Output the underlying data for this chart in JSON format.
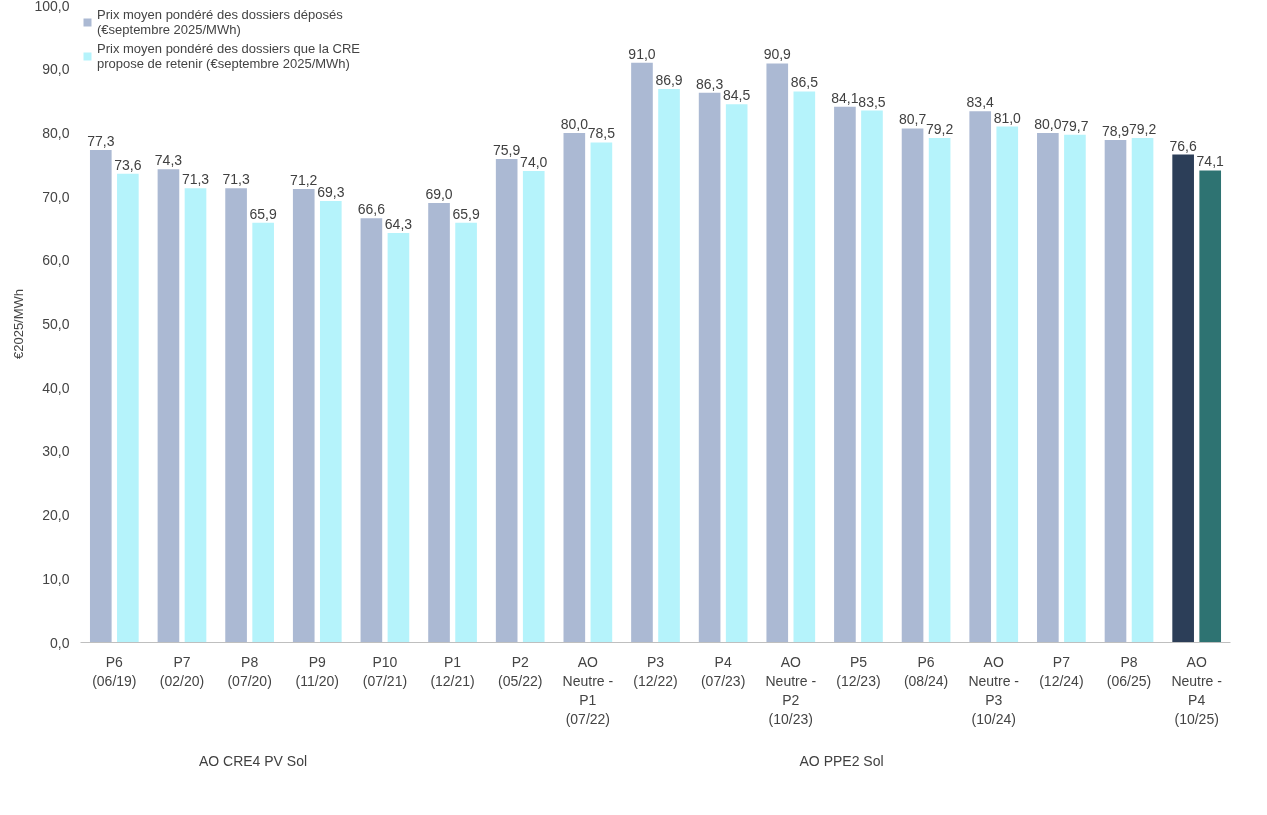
{
  "chart_data": {
    "type": "bar",
    "ylabel": "€2025/MWh",
    "categories": [
      "P6\n(06/19)",
      "P7\n(02/20)",
      "P8\n(07/20)",
      "P9\n(11/20)",
      "P10\n(07/21)",
      "P1\n(12/21)",
      "P2\n(05/22)",
      "AO\nNeutre -\nP1\n(07/22)",
      "P3\n(12/22)",
      "P4\n(07/23)",
      "AO\nNeutre -\nP2\n(10/23)",
      "P5\n(12/23)",
      "P6\n(08/24)",
      "AO\nNeutre -\nP3\n(10/24)",
      "P7\n(12/24)",
      "P8\n(06/25)",
      "AO\nNeutre -\nP4\n(10/25)"
    ],
    "series": [
      {
        "name": "Prix moyen pondéré des dossiers déposés\n(€septembre 2025/MWh)",
        "color": "#abb9d3",
        "colors": [
          "#abb9d3",
          "#abb9d3",
          "#abb9d3",
          "#abb9d3",
          "#abb9d3",
          "#abb9d3",
          "#abb9d3",
          "#abb9d3",
          "#abb9d3",
          "#abb9d3",
          "#abb9d3",
          "#abb9d3",
          "#abb9d3",
          "#abb9d3",
          "#abb9d3",
          "#abb9d3",
          "#2c3e58"
        ],
        "values": [
          77.3,
          74.3,
          71.3,
          71.2,
          66.6,
          69.0,
          75.9,
          80.0,
          91.0,
          86.3,
          90.9,
          84.1,
          80.7,
          83.4,
          80.0,
          78.9,
          76.6
        ],
        "value_labels": [
          "77,3",
          "74,3",
          "71,3",
          "71,2",
          "66,6",
          "69,0",
          "75,9",
          "80,0",
          "91,0",
          "86,3",
          "90,9",
          "84,1",
          "80,7",
          "83,4",
          "80,0",
          "78,9",
          "76,6"
        ]
      },
      {
        "name": "Prix moyen pondéré des dossiers que la CRE\npropose de retenir (€septembre 2025/MWh)",
        "color": "#b5f3fb",
        "colors": [
          "#b5f3fb",
          "#b5f3fb",
          "#b5f3fb",
          "#b5f3fb",
          "#b5f3fb",
          "#b5f3fb",
          "#b5f3fb",
          "#b5f3fb",
          "#b5f3fb",
          "#b5f3fb",
          "#b5f3fb",
          "#b5f3fb",
          "#b5f3fb",
          "#b5f3fb",
          "#b5f3fb",
          "#b5f3fb",
          "#2e7372"
        ],
        "values": [
          73.6,
          71.3,
          65.9,
          69.3,
          64.3,
          65.9,
          74.0,
          78.5,
          86.9,
          84.5,
          86.5,
          83.5,
          79.2,
          81.0,
          79.7,
          79.2,
          74.1
        ],
        "value_labels": [
          "73,6",
          "71,3",
          "65,9",
          "69,3",
          "64,3",
          "65,9",
          "74,0",
          "78,5",
          "86,9",
          "84,5",
          "86,5",
          "83,5",
          "79,2",
          "81,0",
          "79,7",
          "79,2",
          "74,1"
        ]
      }
    ],
    "ylim": [
      0,
      100
    ],
    "yticks": [
      {
        "value": 0,
        "label": "0,0"
      },
      {
        "value": 10,
        "label": "10,0"
      },
      {
        "value": 20,
        "label": "20,0"
      },
      {
        "value": 30,
        "label": "30,0"
      },
      {
        "value": 40,
        "label": "40,0"
      },
      {
        "value": 50,
        "label": "50,0"
      },
      {
        "value": 60,
        "label": "60,0"
      },
      {
        "value": 70,
        "label": "70,0"
      },
      {
        "value": 80,
        "label": "80,0"
      },
      {
        "value": 90,
        "label": "90,0"
      },
      {
        "value": 100,
        "label": "100,0"
      }
    ],
    "annotations": [
      "AO CRE4 PV Sol",
      "AO PPE2 Sol"
    ],
    "legend": "top left"
  }
}
